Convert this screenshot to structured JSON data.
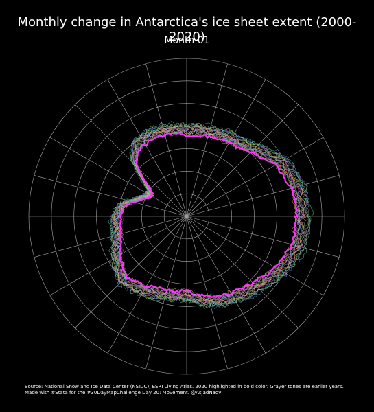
{
  "map": {
    "title": "Monthly change in Antarctica's ice sheet extent (2000-2020)",
    "subtitle": "Month 01",
    "projection": "south-polar-stereographic",
    "graticule": {
      "rings": 7,
      "meridians": 24,
      "color": "#a8a8a8"
    },
    "highlight": {
      "year": "2020",
      "color": "#ff33ff"
    },
    "year_colors": [
      "#6e6e6e",
      "#808080",
      "#9a9a9a",
      "#c8c874",
      "#8a6ed8",
      "#5fb0a8",
      "#d06b5a",
      "#c8c84f",
      "#5a86d0",
      "#d886c0",
      "#8ad06b",
      "#d0a05a",
      "#4fb8d0",
      "#b05ad0",
      "#6bd08a",
      "#d05a86",
      "#86d04f",
      "#a8a8ff",
      "#ffb06b",
      "#4fd0b0"
    ],
    "source": {
      "line1": "Source: National Snow and Ice Data Center (NSIDC), ESRI Living Atlas. 2020 highlighted in bold color. Grayer tones are earlier years.",
      "line2": "Made with #Stata for the #30DayMapChallenge Day 20: Movement. @AsjadNaqvi"
    }
  }
}
